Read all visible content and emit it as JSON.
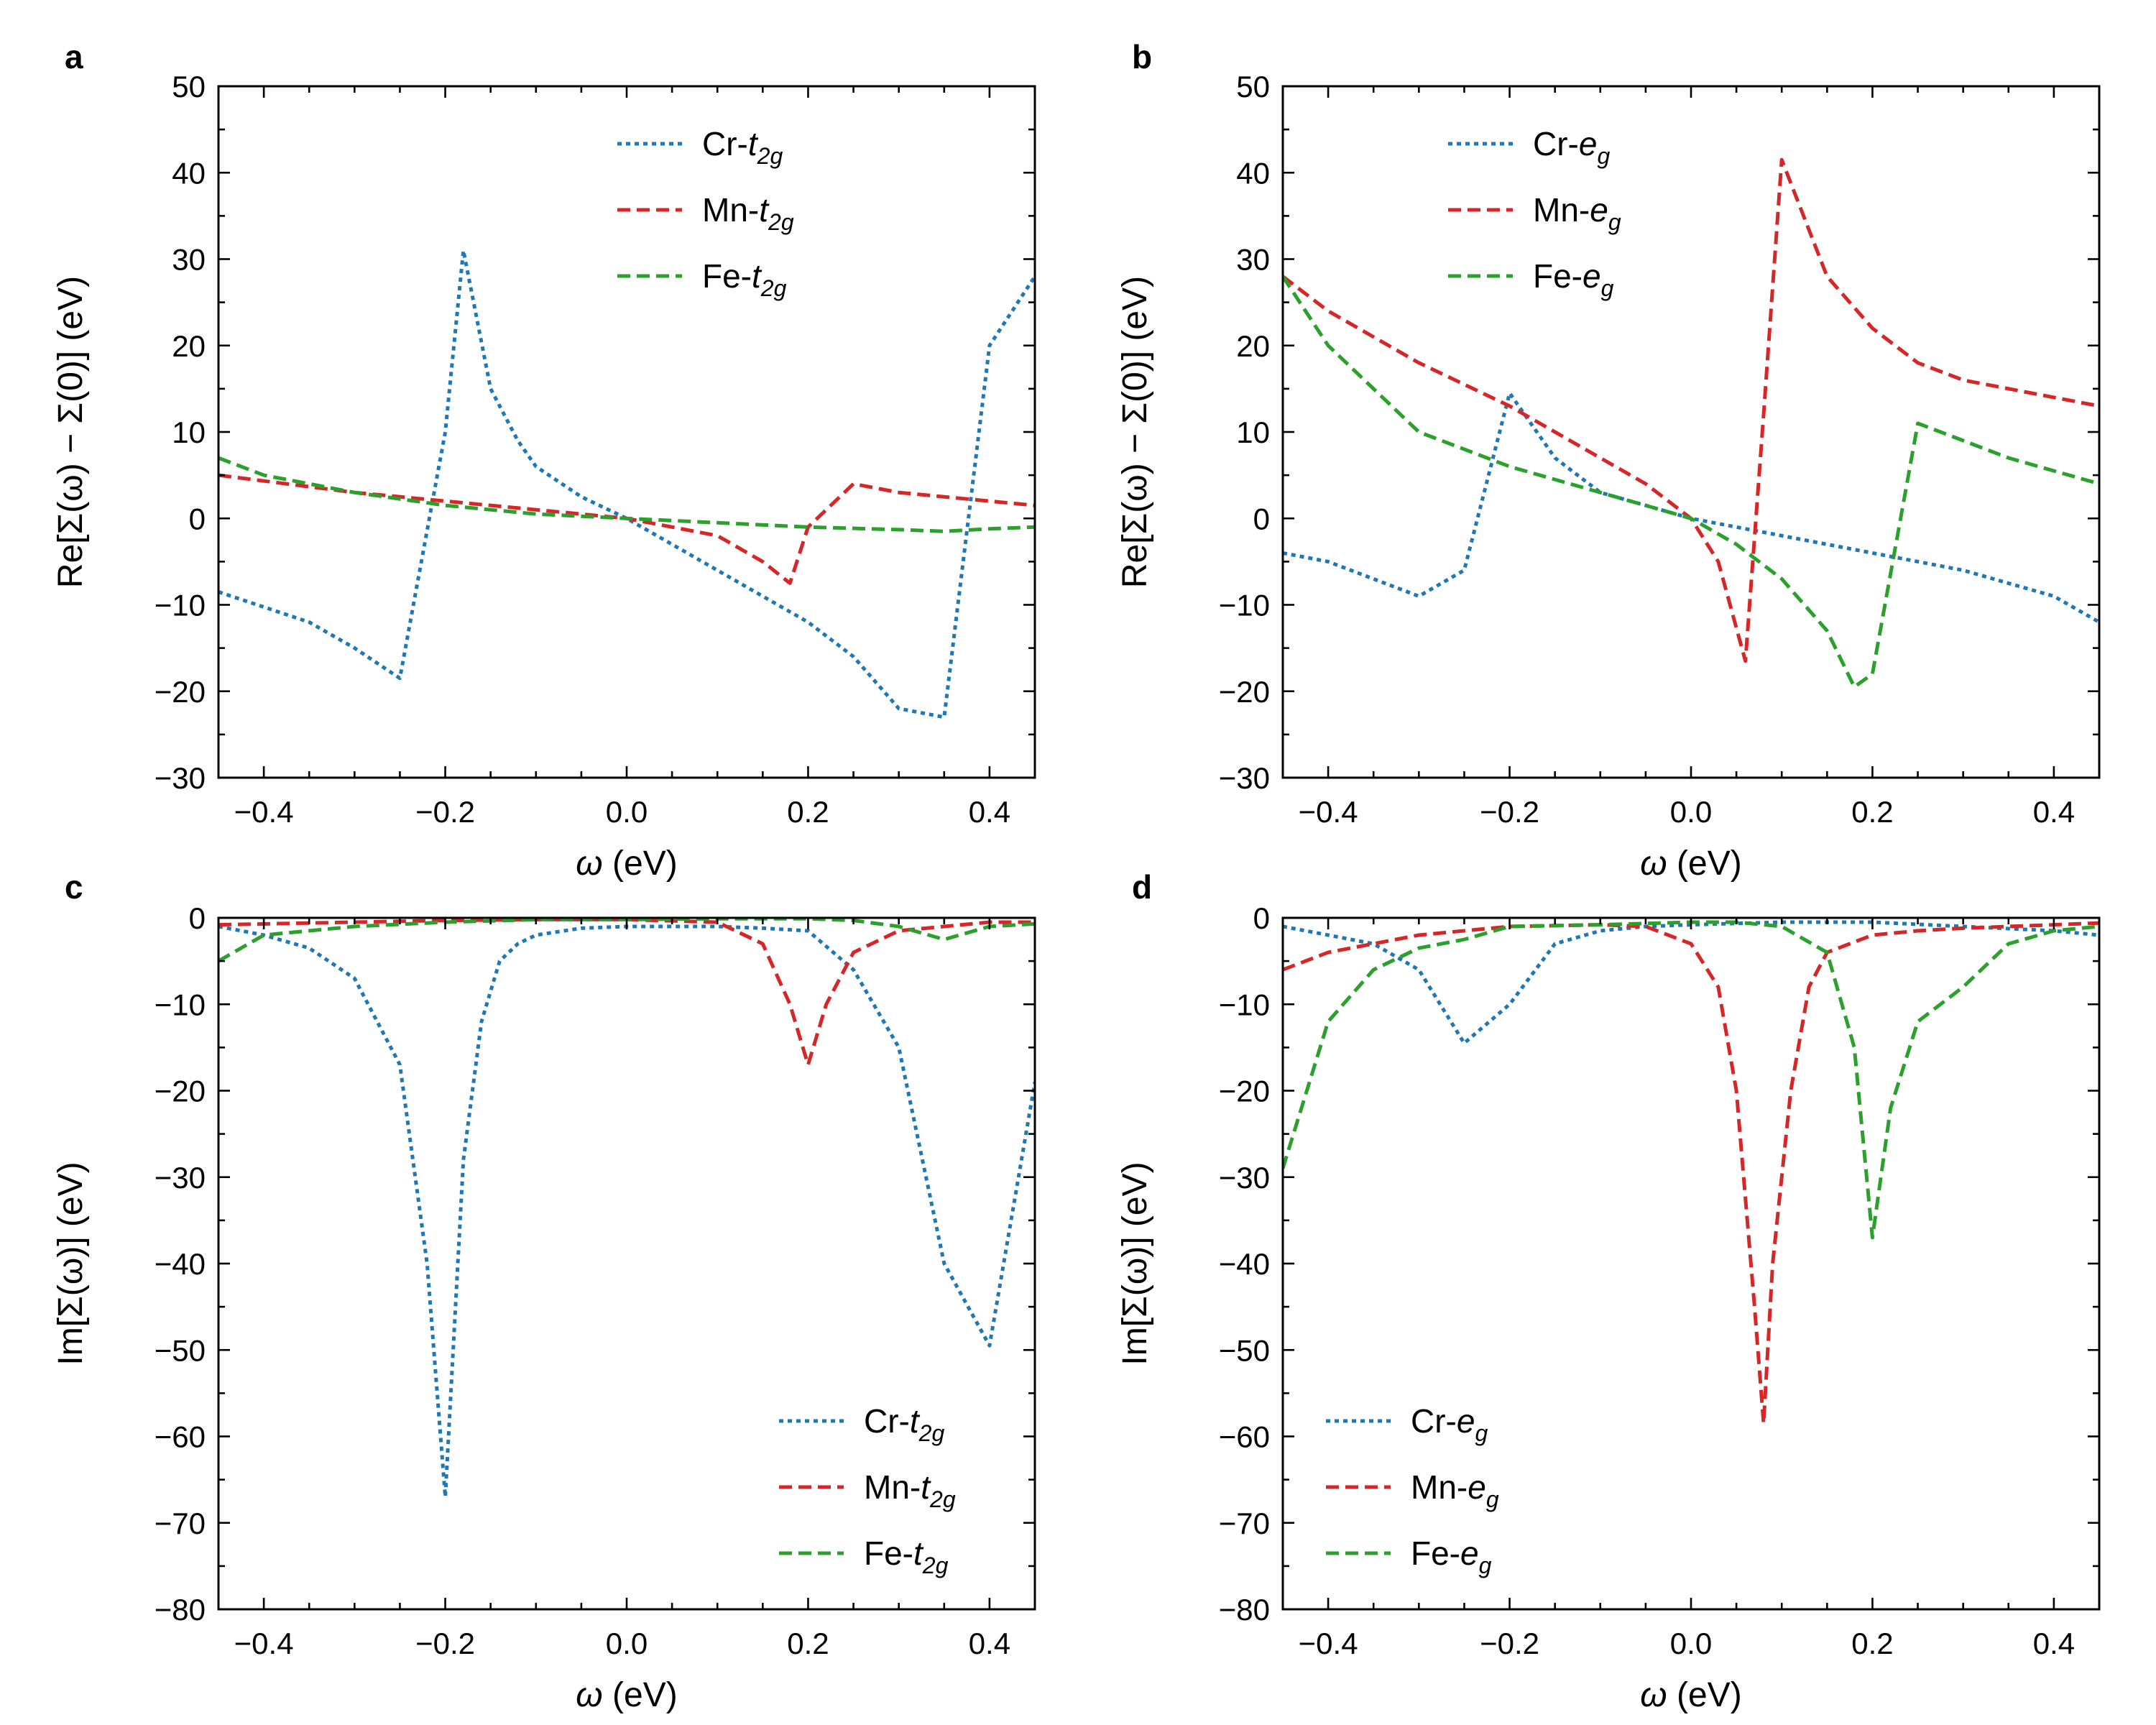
{
  "colors": {
    "Cr": "#1f77b4",
    "Mn": "#d62728",
    "Fe": "#2ca02c"
  },
  "chart_data": [
    {
      "panel": "a",
      "type": "line",
      "xlabel": "ω (eV)",
      "ylabel": "Re[Σ(ω) − Σ(0)] (eV)",
      "xlim": [
        -0.45,
        0.45
      ],
      "ylim": [
        -30,
        50
      ],
      "xticks": [
        -0.4,
        -0.2,
        0.0,
        0.2,
        0.4
      ],
      "xtick_labels": [
        "−0.4",
        "−0.2",
        "0.0",
        "0.2",
        "0.4"
      ],
      "yticks": [
        -30,
        -20,
        -10,
        0,
        10,
        20,
        30,
        40,
        50
      ],
      "ytick_labels": [
        "−30",
        "−20",
        "−10",
        "0",
        "10",
        "20",
        "30",
        "40",
        "50"
      ],
      "legend_position": "top-center",
      "series": [
        {
          "name": "Cr-t2g",
          "label_base": "Cr-",
          "label_italic": "t",
          "label_sub": "2g",
          "color": "#1f77b4",
          "dash": "dotted",
          "x": [
            -0.45,
            -0.35,
            -0.3,
            -0.25,
            -0.2,
            -0.18,
            -0.15,
            -0.12,
            -0.1,
            -0.05,
            0,
            0.05,
            0.1,
            0.15,
            0.2,
            0.25,
            0.3,
            0.35,
            0.4,
            0.45
          ],
          "y": [
            -8.5,
            -12,
            -15,
            -18.5,
            10,
            31,
            15,
            9,
            6,
            2.5,
            0,
            -3,
            -6,
            -9,
            -12,
            -16,
            -22,
            -23,
            20,
            28
          ]
        },
        {
          "name": "Mn-t2g",
          "label_base": "Mn-",
          "label_italic": "t",
          "label_sub": "2g",
          "color": "#d62728",
          "dash": "dashed",
          "x": [
            -0.45,
            -0.3,
            -0.2,
            -0.1,
            0,
            0.1,
            0.15,
            0.18,
            0.2,
            0.25,
            0.3,
            0.35,
            0.4,
            0.45
          ],
          "y": [
            5,
            3,
            2,
            1,
            0,
            -2,
            -5,
            -7.5,
            -1,
            4,
            3,
            2.5,
            2,
            1.5
          ]
        },
        {
          "name": "Fe-t2g",
          "label_base": "Fe-",
          "label_italic": "t",
          "label_sub": "2g",
          "color": "#2ca02c",
          "dash": "dashed",
          "x": [
            -0.45,
            -0.4,
            -0.3,
            -0.2,
            -0.1,
            0,
            0.1,
            0.2,
            0.3,
            0.35,
            0.4,
            0.45
          ],
          "y": [
            7,
            5,
            3,
            1.5,
            0.5,
            0,
            -0.5,
            -1,
            -1.3,
            -1.5,
            -1.2,
            -1
          ]
        }
      ]
    },
    {
      "panel": "b",
      "type": "line",
      "xlabel": "ω (eV)",
      "ylabel": "Re[Σ(ω) − Σ(0)] (eV)",
      "xlim": [
        -0.45,
        0.45
      ],
      "ylim": [
        -30,
        50
      ],
      "xticks": [
        -0.4,
        -0.2,
        0.0,
        0.2,
        0.4
      ],
      "xtick_labels": [
        "−0.4",
        "−0.2",
        "0.0",
        "0.2",
        "0.4"
      ],
      "yticks": [
        -30,
        -20,
        -10,
        0,
        10,
        20,
        30,
        40,
        50
      ],
      "ytick_labels": [
        "−30",
        "−20",
        "−10",
        "0",
        "10",
        "20",
        "30",
        "40",
        "50"
      ],
      "legend_position": "top-left",
      "series": [
        {
          "name": "Cr-eg",
          "label_base": "Cr-",
          "label_italic": "e",
          "label_sub": "g",
          "color": "#1f77b4",
          "dash": "dotted",
          "x": [
            -0.45,
            -0.4,
            -0.35,
            -0.3,
            -0.25,
            -0.2,
            -0.15,
            -0.1,
            -0.05,
            0,
            0.1,
            0.2,
            0.3,
            0.4,
            0.45
          ],
          "y": [
            -4,
            -5,
            -7,
            -9,
            -6,
            14.5,
            7,
            3,
            1.5,
            0,
            -2,
            -4,
            -6,
            -9,
            -12
          ]
        },
        {
          "name": "Mn-eg",
          "label_base": "Mn-",
          "label_italic": "e",
          "label_sub": "g",
          "color": "#d62728",
          "dash": "dashed",
          "x": [
            -0.45,
            -0.4,
            -0.3,
            -0.2,
            -0.1,
            -0.05,
            0,
            0.03,
            0.06,
            0.08,
            0.1,
            0.15,
            0.2,
            0.25,
            0.3,
            0.4,
            0.45
          ],
          "y": [
            28,
            24,
            18,
            13,
            7,
            4,
            0,
            -5,
            -16.5,
            12,
            41.5,
            28,
            22,
            18,
            16,
            14,
            13
          ]
        },
        {
          "name": "Fe-eg",
          "label_base": "Fe-",
          "label_italic": "e",
          "label_sub": "g",
          "color": "#2ca02c",
          "dash": "dashed",
          "x": [
            -0.45,
            -0.4,
            -0.3,
            -0.2,
            -0.1,
            0,
            0.05,
            0.1,
            0.15,
            0.18,
            0.2,
            0.25,
            0.3,
            0.35,
            0.4,
            0.45
          ],
          "y": [
            28,
            20,
            10,
            6,
            3,
            0,
            -3,
            -7,
            -13,
            -19.5,
            -18,
            11,
            9,
            7,
            5.5,
            4
          ]
        }
      ]
    },
    {
      "panel": "c",
      "type": "line",
      "xlabel": "ω (eV)",
      "ylabel": "Im[Σ(ω)] (eV)",
      "xlim": [
        -0.45,
        0.45
      ],
      "ylim": [
        -80,
        0
      ],
      "xticks": [
        -0.4,
        -0.2,
        0.0,
        0.2,
        0.4
      ],
      "xtick_labels": [
        "−0.4",
        "−0.2",
        "0.0",
        "0.2",
        "0.4"
      ],
      "yticks": [
        -80,
        -70,
        -60,
        -50,
        -40,
        -30,
        -20,
        -10,
        0
      ],
      "ytick_labels": [
        "−80",
        "−70",
        "−60",
        "−50",
        "−40",
        "−30",
        "−20",
        "−10",
        "0"
      ],
      "legend_position": "bottom-right",
      "series": [
        {
          "name": "Cr-t2g",
          "label_base": "Cr-",
          "label_italic": "t",
          "label_sub": "2g",
          "color": "#1f77b4",
          "dash": "dotted",
          "x": [
            -0.45,
            -0.4,
            -0.35,
            -0.3,
            -0.25,
            -0.22,
            -0.2,
            -0.18,
            -0.16,
            -0.14,
            -0.12,
            -0.1,
            -0.05,
            0,
            0.05,
            0.1,
            0.15,
            0.2,
            0.25,
            0.3,
            0.35,
            0.4,
            0.45
          ],
          "y": [
            -1,
            -2,
            -3.5,
            -7,
            -17,
            -40,
            -67,
            -28,
            -12,
            -5,
            -3,
            -2,
            -1.2,
            -1,
            -1,
            -1,
            -1.2,
            -1.5,
            -6,
            -15,
            -40,
            -49.5,
            -19
          ]
        },
        {
          "name": "Mn-t2g",
          "label_base": "Mn-",
          "label_italic": "t",
          "label_sub": "2g",
          "color": "#d62728",
          "dash": "dashed",
          "x": [
            -0.45,
            -0.3,
            -0.2,
            -0.1,
            0,
            0.1,
            0.15,
            0.18,
            0.2,
            0.22,
            0.25,
            0.3,
            0.35,
            0.4,
            0.45
          ],
          "y": [
            -0.8,
            -0.5,
            -0.3,
            -0.2,
            -0.2,
            -0.5,
            -3,
            -10,
            -17,
            -10,
            -4,
            -1.5,
            -1,
            -0.5,
            -0.5
          ]
        },
        {
          "name": "Fe-t2g",
          "label_base": "Fe-",
          "label_italic": "t",
          "label_sub": "2g",
          "color": "#2ca02c",
          "dash": "dashed",
          "x": [
            -0.45,
            -0.4,
            -0.35,
            -0.3,
            -0.2,
            -0.1,
            0,
            0.1,
            0.2,
            0.25,
            0.3,
            0.35,
            0.4,
            0.45
          ],
          "y": [
            -5,
            -2,
            -1.5,
            -1,
            -0.5,
            -0.2,
            -0.2,
            -0.1,
            -0.1,
            -0.3,
            -1,
            -2.5,
            -1,
            -0.7
          ]
        }
      ]
    },
    {
      "panel": "d",
      "type": "line",
      "xlabel": "ω (eV)",
      "ylabel": "Im[Σ(ω)] (eV)",
      "xlim": [
        -0.45,
        0.45
      ],
      "ylim": [
        -80,
        0
      ],
      "xticks": [
        -0.4,
        -0.2,
        0.0,
        0.2,
        0.4
      ],
      "xtick_labels": [
        "−0.4",
        "−0.2",
        "0.0",
        "0.2",
        "0.4"
      ],
      "yticks": [
        -80,
        -70,
        -60,
        -50,
        -40,
        -30,
        -20,
        -10,
        0
      ],
      "ytick_labels": [
        "−80",
        "−70",
        "−60",
        "−50",
        "−40",
        "−30",
        "−20",
        "−10",
        "0"
      ],
      "legend_position": "bottom-left",
      "series": [
        {
          "name": "Cr-eg",
          "label_base": "Cr-",
          "label_italic": "e",
          "label_sub": "g",
          "color": "#1f77b4",
          "dash": "dotted",
          "x": [
            -0.45,
            -0.4,
            -0.35,
            -0.3,
            -0.25,
            -0.2,
            -0.15,
            -0.1,
            -0.05,
            0,
            0.1,
            0.2,
            0.3,
            0.4,
            0.45
          ],
          "y": [
            -1,
            -2,
            -3,
            -6,
            -14.5,
            -10,
            -3,
            -1.5,
            -1,
            -0.8,
            -0.5,
            -0.5,
            -1,
            -1.5,
            -2
          ]
        },
        {
          "name": "Mn-eg",
          "label_base": "Mn-",
          "label_italic": "e",
          "label_sub": "g",
          "color": "#d62728",
          "dash": "dashed",
          "x": [
            -0.45,
            -0.4,
            -0.3,
            -0.2,
            -0.1,
            -0.05,
            0,
            0.03,
            0.05,
            0.07,
            0.08,
            0.09,
            0.11,
            0.13,
            0.15,
            0.2,
            0.25,
            0.3,
            0.35,
            0.4,
            0.45
          ],
          "y": [
            -6,
            -4,
            -2,
            -1,
            -0.8,
            -1,
            -3,
            -8,
            -20,
            -45,
            -58.5,
            -40,
            -20,
            -8,
            -4,
            -2,
            -1.5,
            -1.2,
            -1,
            -0.8,
            -0.6
          ]
        },
        {
          "name": "Fe-eg",
          "label_base": "Fe-",
          "label_italic": "e",
          "label_sub": "g",
          "color": "#2ca02c",
          "dash": "dashed",
          "x": [
            -0.45,
            -0.4,
            -0.35,
            -0.3,
            -0.25,
            -0.2,
            -0.1,
            0,
            0.05,
            0.1,
            0.15,
            0.18,
            0.2,
            0.22,
            0.25,
            0.3,
            0.35,
            0.4,
            0.45
          ],
          "y": [
            -29,
            -12,
            -6,
            -3.5,
            -2.5,
            -1,
            -0.8,
            -0.5,
            -0.5,
            -1,
            -4,
            -15,
            -37,
            -22,
            -12,
            -8,
            -3,
            -1.5,
            -1
          ]
        }
      ]
    }
  ]
}
